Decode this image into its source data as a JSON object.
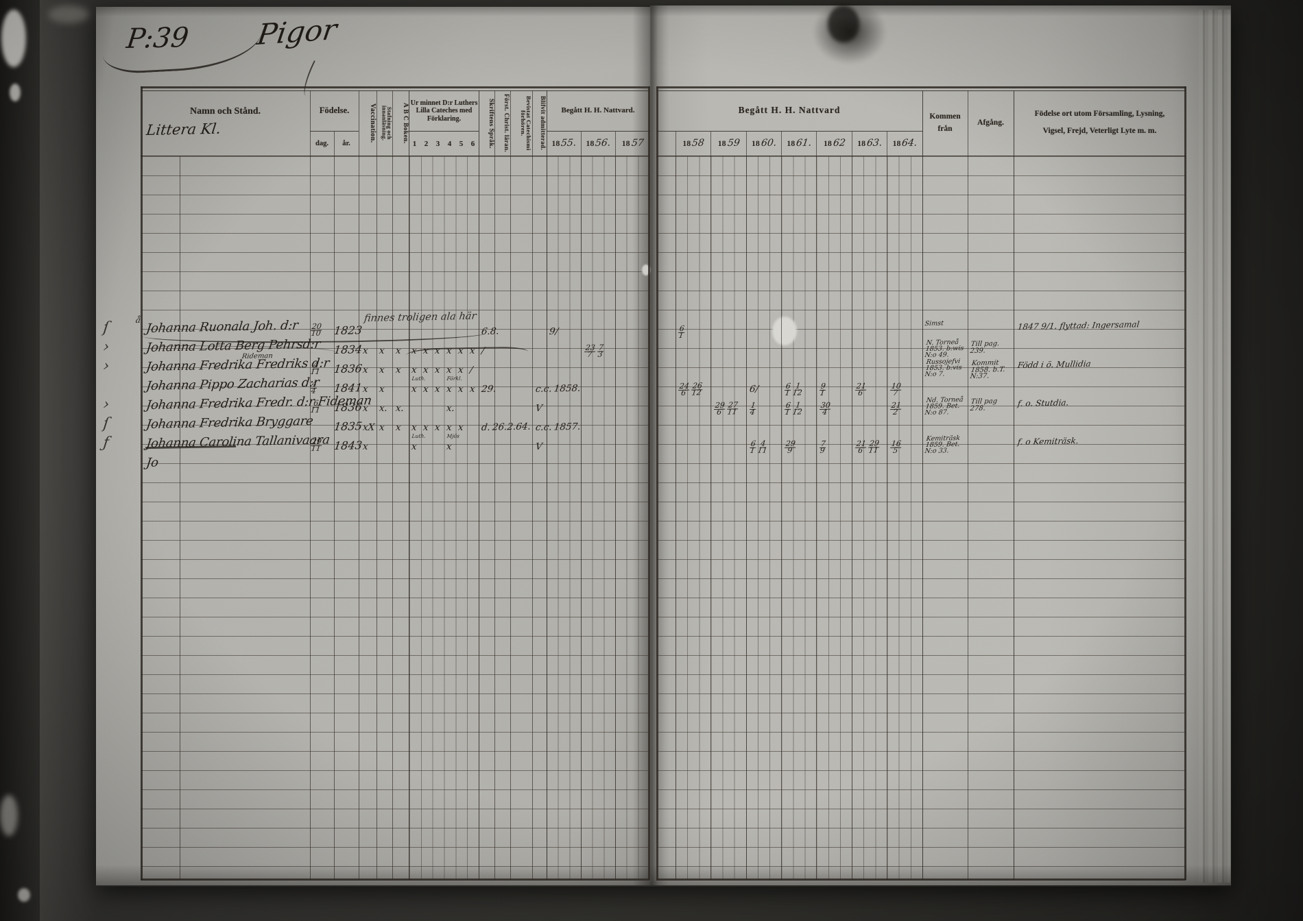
{
  "document": {
    "page_label": "P:39",
    "page_title": "Pigor"
  },
  "left_header": {
    "namn": "Namn och Stånd.",
    "littera": "Littera Kl.",
    "fodelse": "Födelse.",
    "dag": "dag.",
    "ar": "år.",
    "vaccination": "Vaccination.",
    "stafning": "Stafning och innanläsning.",
    "abc": "A B C Boken.",
    "urminnet": "Ur minnet D:r Luthers Lilla Cateches med Förklaring.",
    "cat_nums": [
      "1",
      "2",
      "3",
      "4",
      "5",
      "6"
    ],
    "skriftens": "Skriftens Språk.",
    "forst": "Först. Christ. läran.",
    "bevistat": "Bevistat Catechismi förhören.",
    "blifvit": "Blifvit admitterad.",
    "nattvard": "Begått H. H. Nattvard.",
    "year_prefix": "18",
    "years": [
      "55.",
      "56.",
      "57"
    ]
  },
  "right_header": {
    "nattvard": "Begått H. H. Nattvard",
    "year_prefix": "18",
    "years": [
      "58",
      "59",
      "60.",
      "61.",
      "62",
      "63.",
      "64."
    ],
    "kommen_line1": "Kommen",
    "kommen_line2": "från",
    "afgang": "Afgång.",
    "fodelseort_line1": "Födelse ort utom Församling, Lysning,",
    "fodelseort_line2": "Vigsel, Frejd, Veterligt Lyte m. m."
  },
  "rows": [
    {
      "margin": "ſ",
      "pre": "å",
      "name": "Johanna Ruonala Joh. d:r",
      "bday": "20/10",
      "byear": "1823",
      "catnote": "finnes troligen ala här",
      "cells": {
        "skrift": "6.8.",
        "y55": "9/",
        "n58": "6/1"
      },
      "kommen": "Simst",
      "note": "1847 9/1. flyttad: Ingersamal",
      "underline": true
    },
    {
      "margin": "›",
      "name": "Johanna Lotta Berg Pehrsd:r",
      "byear": "1834",
      "cells": {
        "vacc": "x",
        "staf": "x",
        "abc": "x",
        "c1": "x",
        "c2": "x",
        "c3": "x",
        "c4": "x",
        "c5": "x",
        "c6": "x",
        "skrift": "/",
        "y56": "23/7 7/3"
      },
      "scribble": true,
      "kommen": "N. Torneå 1853. b:wis N:o 49.",
      "afgang": "Till pag. 239."
    },
    {
      "margin": "›",
      "overname": "Rideman",
      "name": "Johanna Fredrika Fredriks d:r",
      "bday": "4/11",
      "byear": "1836",
      "cells": {
        "vacc": "x",
        "staf": "x",
        "abc": "x",
        "c1": "x",
        "c2": "x",
        "c3": "x",
        "c4": "x",
        "c5": "x",
        "c6": "/"
      },
      "kommen": "Russojefvi 1853. b:vis N:o 7.",
      "afgang": "Kommit 1858. b.T. N:37.",
      "note": "Född i ö. Mullidia"
    },
    {
      "name": "Johanna Pippo Zacharias d:r",
      "bday": "4/4",
      "byear": "1841",
      "cells": {
        "vacc": "x",
        "staf": "x",
        "c1": "x",
        "c1note": "Luth.",
        "c2": "x",
        "c3": "x",
        "c4": "x",
        "c4note": "Förkl.",
        "c5": "x",
        "c6": "x",
        "skrift": "29.",
        "adm": "c.c. 1858.",
        "n58": "24/6 26/12",
        "n60": "6/",
        "n61": "6/1 1/12",
        "n62": "9/1",
        "n63": "21/6",
        "n64": "10/7"
      }
    },
    {
      "margin": "›",
      "name": "Johanna Fredrika Fredr. d:r Fideman",
      "bday": "6/11",
      "byear": "1836",
      "cells": {
        "vacc": "x",
        "staf": "x.",
        "abc": "x.",
        "c4": "x.",
        "adm": "V",
        "n59": "29/6 27/11",
        "n60": "1/4",
        "n61": "6/1 1/12",
        "n62": "30/4",
        "n64": "21/2"
      },
      "kommen": "Nd. Torneå 1859. Bet. N:o 87.",
      "afgang": "Till pag 278.",
      "note": "f. o. Stutdia."
    },
    {
      "margin": "ſ",
      "name": "Johanna Fredrika Bryggare",
      "byear": "1835",
      "cells": {
        "vacc": "xX",
        "staf": "x",
        "abc": "x",
        "c1": "x",
        "c2": "x",
        "c3": "x",
        "c4": "x",
        "c5": "x",
        "skrift": "d. 26.2.64.",
        "adm": "c.c. 1857."
      }
    },
    {
      "margin": "ƒ",
      "name": "Johanna Carolina Tallanivaara",
      "bday": "29/11",
      "byear": "1843",
      "strike_name": true,
      "cells": {
        "vacc": "x",
        "c1": "x",
        "c1note": "Luth.",
        "c4": "x",
        "c4note": "Mjös",
        "adm": "V",
        "n60": "6/1 4/11",
        "n61": "29/9",
        "n62": "7/9",
        "n63": "21/6 29/11",
        "n64": "16/5"
      },
      "kommen": "Kemiträsk 1859. Bet. N:o 33.",
      "note": "f. o Kemiträsk."
    },
    {
      "name": "Jo"
    }
  ]
}
